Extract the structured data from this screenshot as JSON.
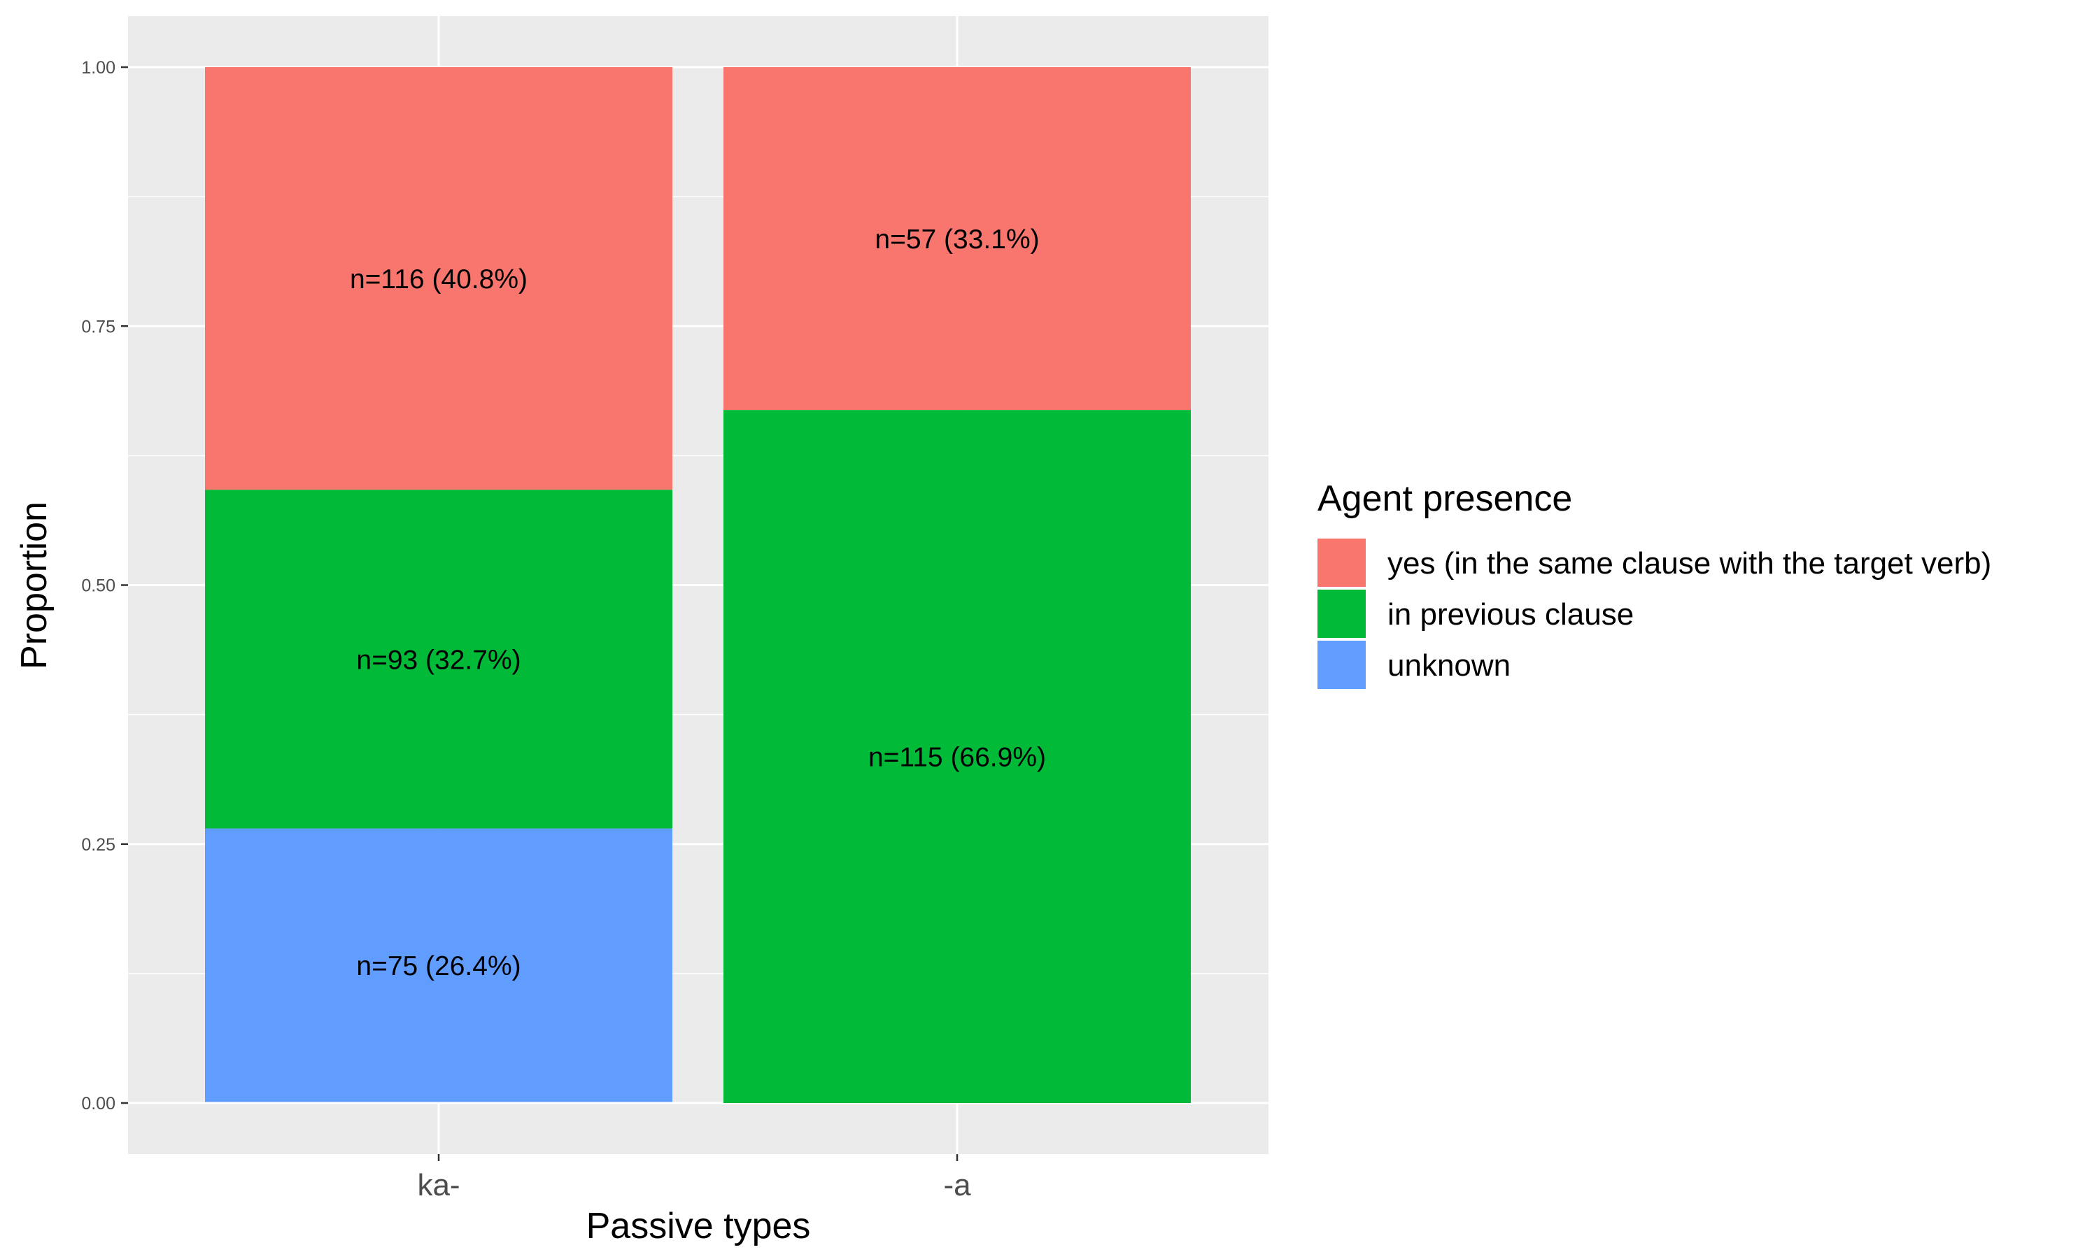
{
  "chart_data": {
    "type": "bar",
    "stacked": true,
    "title": "",
    "xlabel": "Passive types",
    "ylabel": "Proportion",
    "categories": [
      "ka-",
      "-a"
    ],
    "ylim": [
      -0.05,
      1.05
    ],
    "yticks": [
      0.0,
      0.25,
      0.5,
      0.75,
      1.0
    ],
    "ytick_labels": [
      "0.00",
      "0.25",
      "0.50",
      "0.75",
      "1.00"
    ],
    "grid": true,
    "legend": {
      "title": "Agent presence",
      "position": "right"
    },
    "series": [
      {
        "name": "yes (in the same clause with the target verb)",
        "color": "#F8766D",
        "values": [
          0.408,
          0.331
        ],
        "labels": [
          "n=116 (40.8%)",
          "n=57 (33.1%)"
        ]
      },
      {
        "name": "in previous clause",
        "color": "#00BA38",
        "values": [
          0.327,
          0.669
        ],
        "labels": [
          "n=93 (32.7%)",
          "n=115 (66.9%)"
        ]
      },
      {
        "name": "unknown",
        "color": "#619CFF",
        "values": [
          0.264,
          0.0
        ],
        "labels": [
          "n=75 (26.4%)",
          ""
        ]
      }
    ]
  },
  "colors": {
    "panel_background": "#EBEBEB",
    "grid_line": "#FFFFFF",
    "tick_text": "#4D4D4D",
    "tick_mark": "#333333"
  }
}
